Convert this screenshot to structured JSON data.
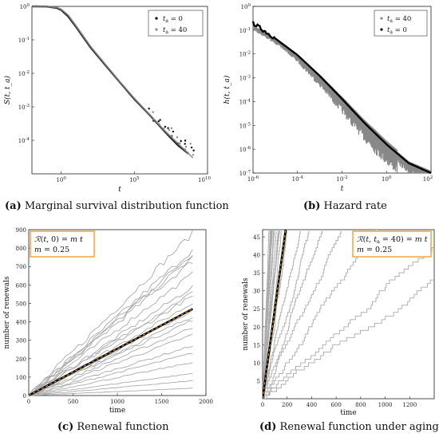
{
  "panels": {
    "a": {
      "caption_tag": "(a)",
      "caption_text": "Marginal survival distribution function"
    },
    "b": {
      "caption_tag": "(b)",
      "caption_text": "Hazard rate"
    },
    "c": {
      "caption_tag": "(c)",
      "caption_text": "Renewal function"
    },
    "d": {
      "caption_tag": "(d)",
      "caption_text": "Renewal function under aging"
    }
  },
  "chart_data": [
    {
      "id": "a",
      "type": "scatter",
      "xscale": "log",
      "yscale": "log",
      "xlim": [
        0.01,
        10000000000.0
      ],
      "ylim": [
        1e-05,
        1
      ],
      "xlabel": "t",
      "ylabel": "S(t, t_a)",
      "xticks": [
        "10^0",
        "10^5",
        "10^10"
      ],
      "yticks": [
        "10^0",
        "10^-1",
        "10^-2",
        "10^-3",
        "10^-4"
      ],
      "legend_position": "top-right",
      "series": [
        {
          "name": "t_a = 0",
          "color": "#000000",
          "points": [
            [
              0.01,
              1.0
            ],
            [
              0.1,
              0.99
            ],
            [
              0.5,
              0.9
            ],
            [
              1,
              0.78
            ],
            [
              3,
              0.5
            ],
            [
              10,
              0.25
            ],
            [
              100,
              0.06
            ],
            [
              1000,
              0.018
            ],
            [
              10000.0,
              0.0055
            ],
            [
              100000.0,
              0.0017
            ],
            [
              1000000.0,
              0.0006
            ],
            [
              10000000.0,
              0.0002
            ],
            [
              30000000.0,
              0.00012
            ],
            [
              100000000.0,
              7e-05
            ],
            [
              500000000.0,
              4e-05
            ]
          ]
        },
        {
          "name": "t_a = 40",
          "color": "#888888",
          "points": [
            [
              0.01,
              1.0
            ],
            [
              0.1,
              0.995
            ],
            [
              0.5,
              0.93
            ],
            [
              1,
              0.82
            ],
            [
              3,
              0.55
            ],
            [
              10,
              0.27
            ],
            [
              100,
              0.065
            ],
            [
              1000,
              0.019
            ],
            [
              10000.0,
              0.0057
            ],
            [
              100000.0,
              0.0018
            ],
            [
              1000000.0,
              0.00062
            ],
            [
              10000000.0,
              0.00021
            ],
            [
              100000000.0,
              8e-05
            ],
            [
              1000000000.0,
              3e-05
            ]
          ]
        }
      ]
    },
    {
      "id": "b",
      "type": "scatter",
      "xscale": "log",
      "yscale": "log",
      "xlim": [
        1e-06,
        100
      ],
      "ylim": [
        1e-07,
        1
      ],
      "xlabel": "t",
      "ylabel": "h(t, t_a)",
      "xticks": [
        "10^-6",
        "10^-4",
        "10^-2",
        "10^0",
        "10^2"
      ],
      "yticks": [
        "10^0",
        "10^-1",
        "10^-2",
        "10^-3",
        "10^-4",
        "10^-5",
        "10^-6",
        "10^-7"
      ],
      "legend_position": "top-right",
      "series": [
        {
          "name": "t_a = 40",
          "color": "#888888",
          "points": [
            [
              1e-06,
              0.15
            ],
            [
              1e-05,
              0.04
            ],
            [
              0.0001,
              0.008
            ],
            [
              0.001,
              0.0011
            ],
            [
              0.01,
              0.00012
            ],
            [
              0.1,
              1.2e-05
            ],
            [
              1,
              1.5e-06
            ],
            [
              10,
              2.5e-07
            ],
            [
              100,
              1e-07
            ]
          ]
        },
        {
          "name": "t_a = 0",
          "color": "#000000",
          "points": [
            [
              1e-06,
              0.2
            ],
            [
              1e-05,
              0.045
            ],
            [
              0.0001,
              0.009
            ],
            [
              0.001,
              0.0012
            ],
            [
              0.01,
              0.00013
            ],
            [
              0.1,
              1.3e-05
            ],
            [
              1,
              1.6e-06
            ],
            [
              10,
              2.6e-07
            ],
            [
              100,
              1e-07
            ]
          ]
        }
      ]
    },
    {
      "id": "c",
      "type": "line",
      "xlim": [
        0,
        2000
      ],
      "ylim": [
        0,
        900
      ],
      "xlabel": "time",
      "ylabel": "number of renewals",
      "xticks": [
        "0",
        "500",
        "1000",
        "1500",
        "2000"
      ],
      "yticks": [
        "0",
        "100",
        "200",
        "300",
        "400",
        "500",
        "600",
        "700",
        "800",
        "900"
      ],
      "annotation": [
        "R(t, 0) = m t",
        "m = 0.25"
      ],
      "fit_slope": 0.25,
      "trajectory_endpoints": [
        880,
        790,
        770,
        750,
        730,
        660,
        590,
        560,
        540,
        500,
        460,
        430,
        410,
        370,
        330,
        270,
        230,
        180,
        120,
        80,
        40
      ],
      "x_end": 1850
    },
    {
      "id": "d",
      "type": "line",
      "xlim": [
        0,
        1400
      ],
      "ylim": [
        0,
        47
      ],
      "xlabel": "time",
      "ylabel": "number of renewals",
      "xticks": [
        "0",
        "200",
        "400",
        "600",
        "800",
        "1000",
        "1200"
      ],
      "yticks": [
        "5",
        "10",
        "15",
        "20",
        "25",
        "30",
        "35",
        "40",
        "45"
      ],
      "annotation": [
        "R(t, t_a = 40) = m t",
        "m = 0.25"
      ],
      "fit_slope": 0.25,
      "trajectory_slopes": [
        0.9,
        0.6,
        0.45,
        0.35,
        0.3,
        0.22,
        0.16,
        0.12,
        0.09,
        0.07,
        0.05,
        0.035,
        0.025
      ]
    }
  ]
}
